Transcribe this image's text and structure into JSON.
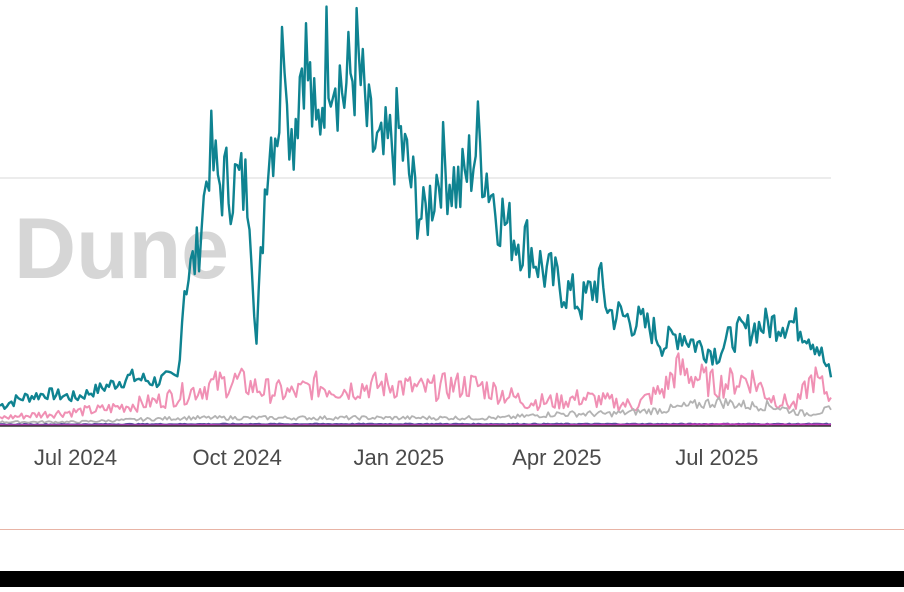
{
  "watermark": "Dune",
  "colors": {
    "teal": "#0f8391",
    "pink": "#f090b4",
    "gray": "#b3b3b3",
    "purple": "#5a4a9c",
    "magenta": "#c03ab8",
    "gridline": "#e6e6e6",
    "divider": "#e8b4a6",
    "bottom_bar": "#000000"
  },
  "chart_data": {
    "type": "line",
    "title": "",
    "xlabel": "",
    "ylabel": "",
    "grid": "horizontal",
    "legend": "none",
    "xlim": [
      "2024-05-19",
      "2025-09-04"
    ],
    "ylim": [
      0,
      1
    ],
    "x_ticks": [
      {
        "date": "2024-07-01",
        "label": "Jul 2024"
      },
      {
        "date": "2024-10-01",
        "label": "Oct 2024"
      },
      {
        "date": "2025-01-01",
        "label": "Jan 2025"
      },
      {
        "date": "2025-04-01",
        "label": "Apr 2025"
      },
      {
        "date": "2025-07-01",
        "label": "Jul 2025"
      }
    ],
    "series": [
      {
        "color": "#0f8391",
        "points": [
          [
            "2024-05-19",
            0.05
          ],
          [
            "2024-06-01",
            0.07
          ],
          [
            "2024-06-15",
            0.08
          ],
          [
            "2024-07-01",
            0.07
          ],
          [
            "2024-07-20",
            0.1
          ],
          [
            "2024-08-01",
            0.12
          ],
          [
            "2024-08-15",
            0.11
          ],
          [
            "2024-08-28",
            0.12
          ],
          [
            "2024-09-01",
            0.35
          ],
          [
            "2024-09-08",
            0.42
          ],
          [
            "2024-09-12",
            0.55
          ],
          [
            "2024-09-15",
            0.68
          ],
          [
            "2024-09-20",
            0.6
          ],
          [
            "2024-10-01",
            0.6
          ],
          [
            "2024-10-08",
            0.58
          ],
          [
            "2024-10-12",
            0.2
          ],
          [
            "2024-10-18",
            0.68
          ],
          [
            "2024-10-25",
            0.78
          ],
          [
            "2024-10-28",
            1.0
          ],
          [
            "2024-11-01",
            0.7
          ],
          [
            "2024-11-08",
            0.95
          ],
          [
            "2024-11-15",
            0.7
          ],
          [
            "2024-11-22",
            0.95
          ],
          [
            "2024-12-01",
            0.82
          ],
          [
            "2024-12-08",
            0.9
          ],
          [
            "2024-12-15",
            0.72
          ],
          [
            "2024-12-22",
            0.65
          ],
          [
            "2025-01-01",
            0.72
          ],
          [
            "2025-01-08",
            0.6
          ],
          [
            "2025-01-15",
            0.5
          ],
          [
            "2025-01-25",
            0.65
          ],
          [
            "2025-02-05",
            0.58
          ],
          [
            "2025-02-15",
            0.7
          ],
          [
            "2025-02-25",
            0.55
          ],
          [
            "2025-03-05",
            0.48
          ],
          [
            "2025-03-15",
            0.45
          ],
          [
            "2025-03-25",
            0.38
          ],
          [
            "2025-04-05",
            0.34
          ],
          [
            "2025-04-15",
            0.3
          ],
          [
            "2025-04-25",
            0.36
          ],
          [
            "2025-05-01",
            0.28
          ],
          [
            "2025-05-15",
            0.26
          ],
          [
            "2025-05-25",
            0.24
          ],
          [
            "2025-06-01",
            0.2
          ],
          [
            "2025-06-10",
            0.23
          ],
          [
            "2025-06-20",
            0.2
          ],
          [
            "2025-07-01",
            0.18
          ],
          [
            "2025-07-10",
            0.22
          ],
          [
            "2025-07-20",
            0.24
          ],
          [
            "2025-07-30",
            0.25
          ],
          [
            "2025-08-10",
            0.26
          ],
          [
            "2025-08-20",
            0.24
          ],
          [
            "2025-08-27",
            0.2
          ],
          [
            "2025-09-04",
            0.12
          ]
        ]
      },
      {
        "color": "#f090b4",
        "points": [
          [
            "2024-05-19",
            0.02
          ],
          [
            "2024-06-15",
            0.03
          ],
          [
            "2024-07-15",
            0.04
          ],
          [
            "2024-08-15",
            0.06
          ],
          [
            "2024-09-01",
            0.08
          ],
          [
            "2024-09-15",
            0.1
          ],
          [
            "2024-10-01",
            0.11
          ],
          [
            "2024-10-15",
            0.09
          ],
          [
            "2024-11-01",
            0.08
          ],
          [
            "2024-11-15",
            0.1
          ],
          [
            "2024-12-01",
            0.09
          ],
          [
            "2024-12-15",
            0.1
          ],
          [
            "2025-01-01",
            0.1
          ],
          [
            "2025-01-15",
            0.09
          ],
          [
            "2025-02-01",
            0.1
          ],
          [
            "2025-02-15",
            0.1
          ],
          [
            "2025-03-01",
            0.08
          ],
          [
            "2025-03-15",
            0.06
          ],
          [
            "2025-04-01",
            0.06
          ],
          [
            "2025-04-15",
            0.07
          ],
          [
            "2025-05-01",
            0.06
          ],
          [
            "2025-05-15",
            0.05
          ],
          [
            "2025-06-01",
            0.09
          ],
          [
            "2025-06-08",
            0.14
          ],
          [
            "2025-06-20",
            0.12
          ],
          [
            "2025-07-01",
            0.1
          ],
          [
            "2025-07-20",
            0.12
          ],
          [
            "2025-08-01",
            0.07
          ],
          [
            "2025-08-15",
            0.05
          ],
          [
            "2025-08-25",
            0.12
          ],
          [
            "2025-09-04",
            0.07
          ]
        ]
      },
      {
        "color": "#b3b3b3",
        "points": [
          [
            "2024-05-19",
            0.01
          ],
          [
            "2024-07-01",
            0.01
          ],
          [
            "2024-09-01",
            0.02
          ],
          [
            "2024-10-01",
            0.02
          ],
          [
            "2024-11-01",
            0.02
          ],
          [
            "2024-12-01",
            0.02
          ],
          [
            "2025-01-01",
            0.02
          ],
          [
            "2025-02-01",
            0.02
          ],
          [
            "2025-03-01",
            0.02
          ],
          [
            "2025-04-01",
            0.03
          ],
          [
            "2025-05-01",
            0.03
          ],
          [
            "2025-06-01",
            0.04
          ],
          [
            "2025-07-01",
            0.06
          ],
          [
            "2025-07-20",
            0.05
          ],
          [
            "2025-08-01",
            0.05
          ],
          [
            "2025-08-20",
            0.03
          ],
          [
            "2025-09-04",
            0.04
          ]
        ]
      },
      {
        "color": "#5a4a9c",
        "points": [
          [
            "2024-05-19",
            0.004
          ],
          [
            "2024-10-01",
            0.005
          ],
          [
            "2025-01-01",
            0.005
          ],
          [
            "2025-04-01",
            0.005
          ],
          [
            "2025-07-01",
            0.005
          ],
          [
            "2025-09-04",
            0.005
          ]
        ]
      },
      {
        "color": "#c03ab8",
        "points": [
          [
            "2024-05-19",
            0.002
          ],
          [
            "2025-01-01",
            0.002
          ],
          [
            "2025-06-01",
            0.003
          ],
          [
            "2025-07-01",
            0.004
          ],
          [
            "2025-09-04",
            0.003
          ]
        ]
      }
    ]
  }
}
